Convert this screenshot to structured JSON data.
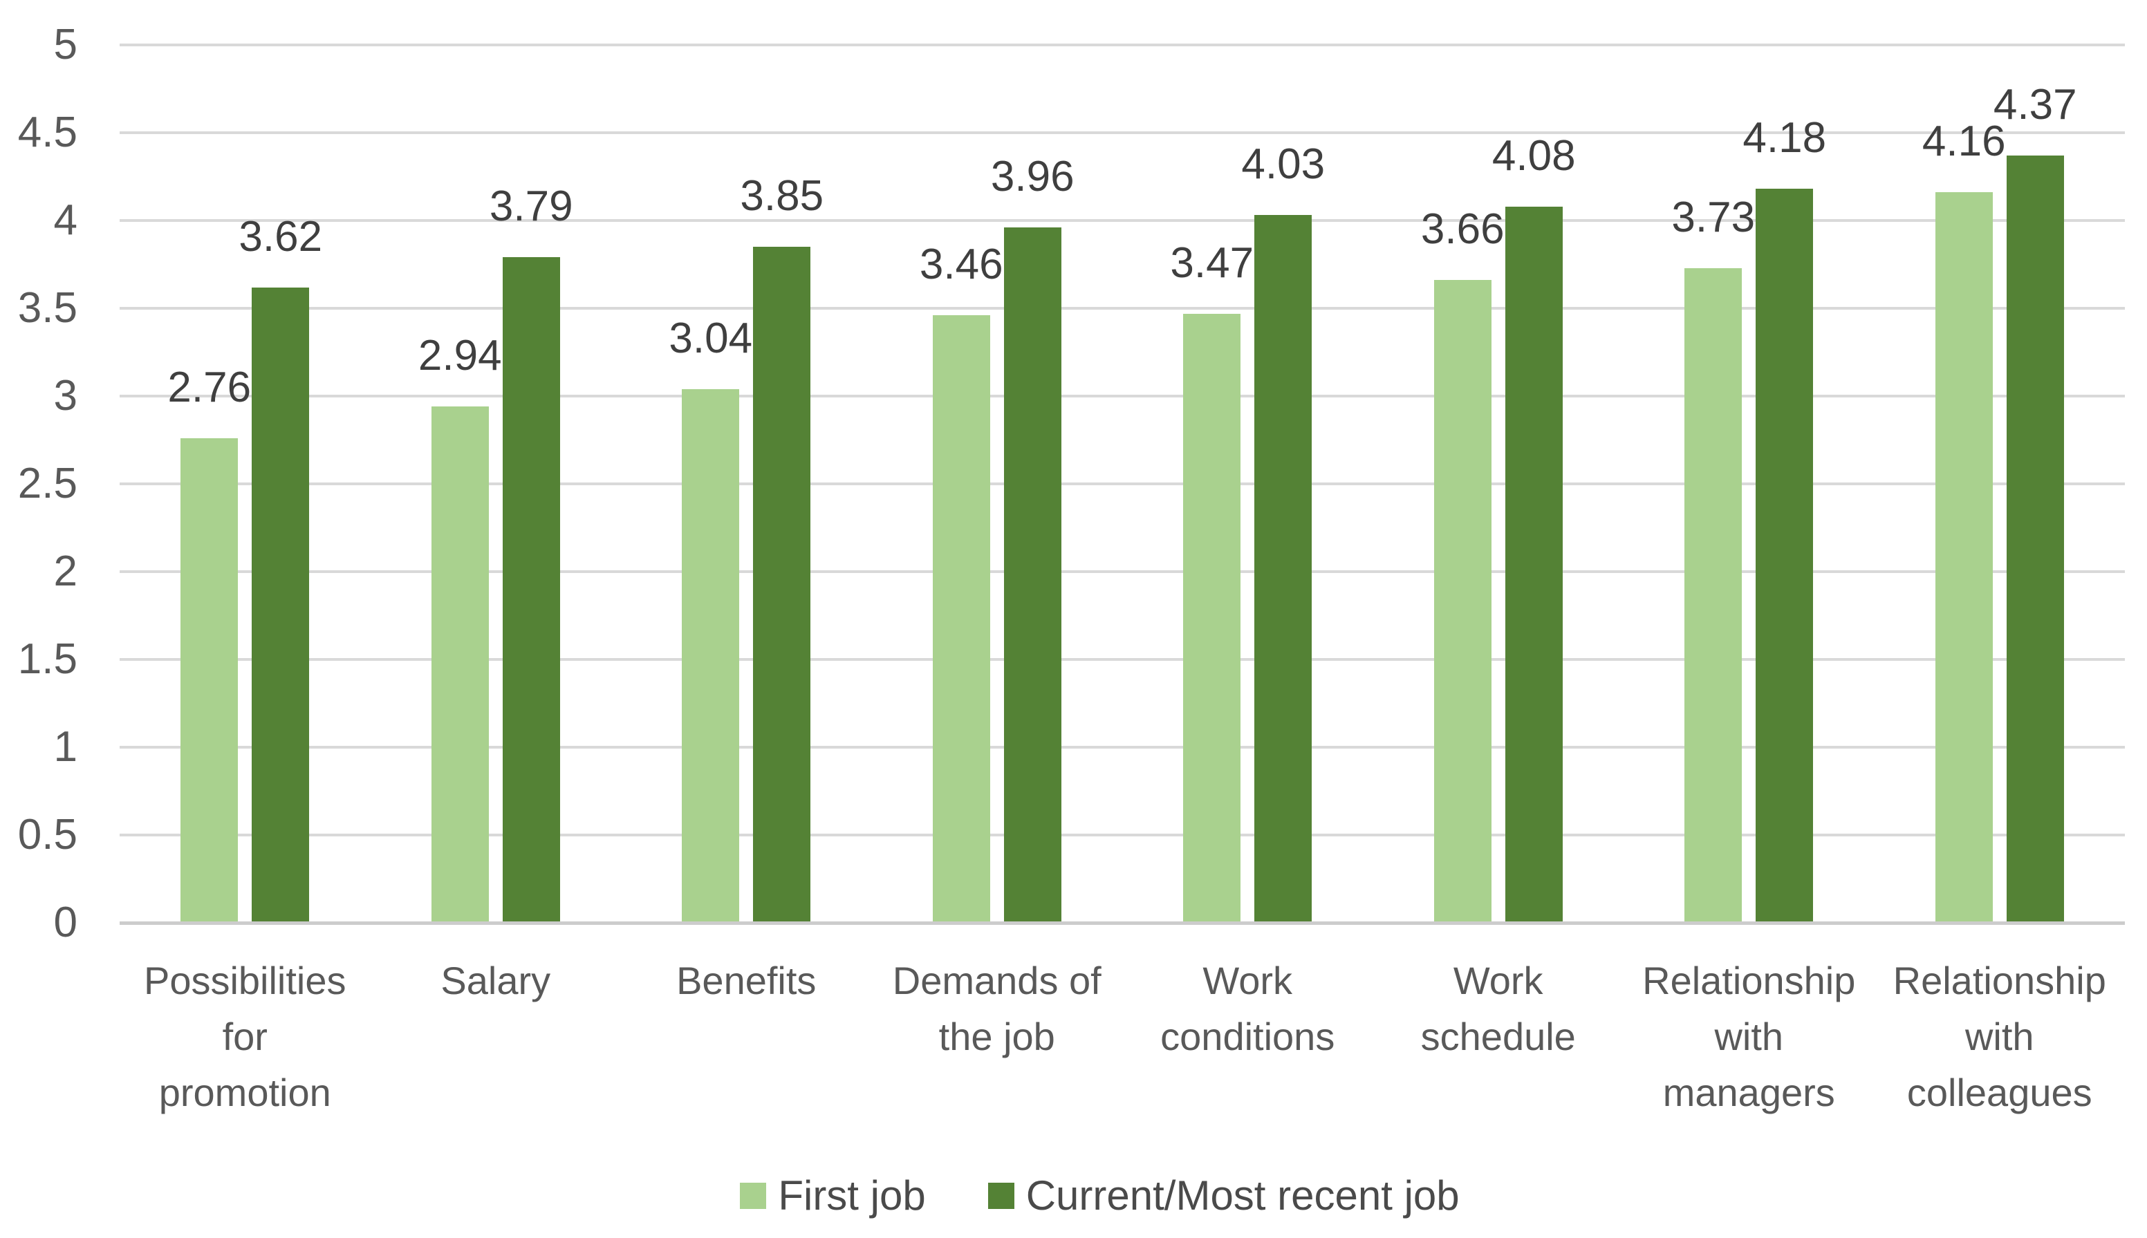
{
  "chart_data": {
    "type": "bar",
    "categories": [
      "Possibilities for promotion",
      "Salary",
      "Benefits",
      "Demands of the job",
      "Work conditions",
      "Work schedule",
      "Relationship with managers",
      "Relationship with colleagues"
    ],
    "series": [
      {
        "name": "First job",
        "color": "#a9d18e",
        "values": [
          2.76,
          2.94,
          3.04,
          3.46,
          3.47,
          3.66,
          3.73,
          4.16
        ]
      },
      {
        "name": "Current/Most recent job",
        "color": "#548235",
        "values": [
          3.62,
          3.79,
          3.85,
          3.96,
          4.03,
          4.08,
          4.18,
          4.37
        ]
      }
    ],
    "ylim": [
      0,
      5
    ],
    "ytick_step": 0.5,
    "yticks": [
      "0",
      "0.5",
      "1",
      "1.5",
      "2",
      "2.5",
      "3",
      "3.5",
      "4",
      "4.5",
      "5"
    ],
    "grid": "horizontal",
    "legend_position": "bottom",
    "data_labels_decimals": 2
  },
  "colors": {
    "bar_light": "#a9d18e",
    "bar_dark": "#548235",
    "gridline": "#d9d9d9",
    "axis_line": "#cccccc",
    "axis_text": "#595959",
    "data_label_text": "#3f3f3f",
    "legend_text": "#4a4a4a",
    "background": "#ffffff"
  }
}
